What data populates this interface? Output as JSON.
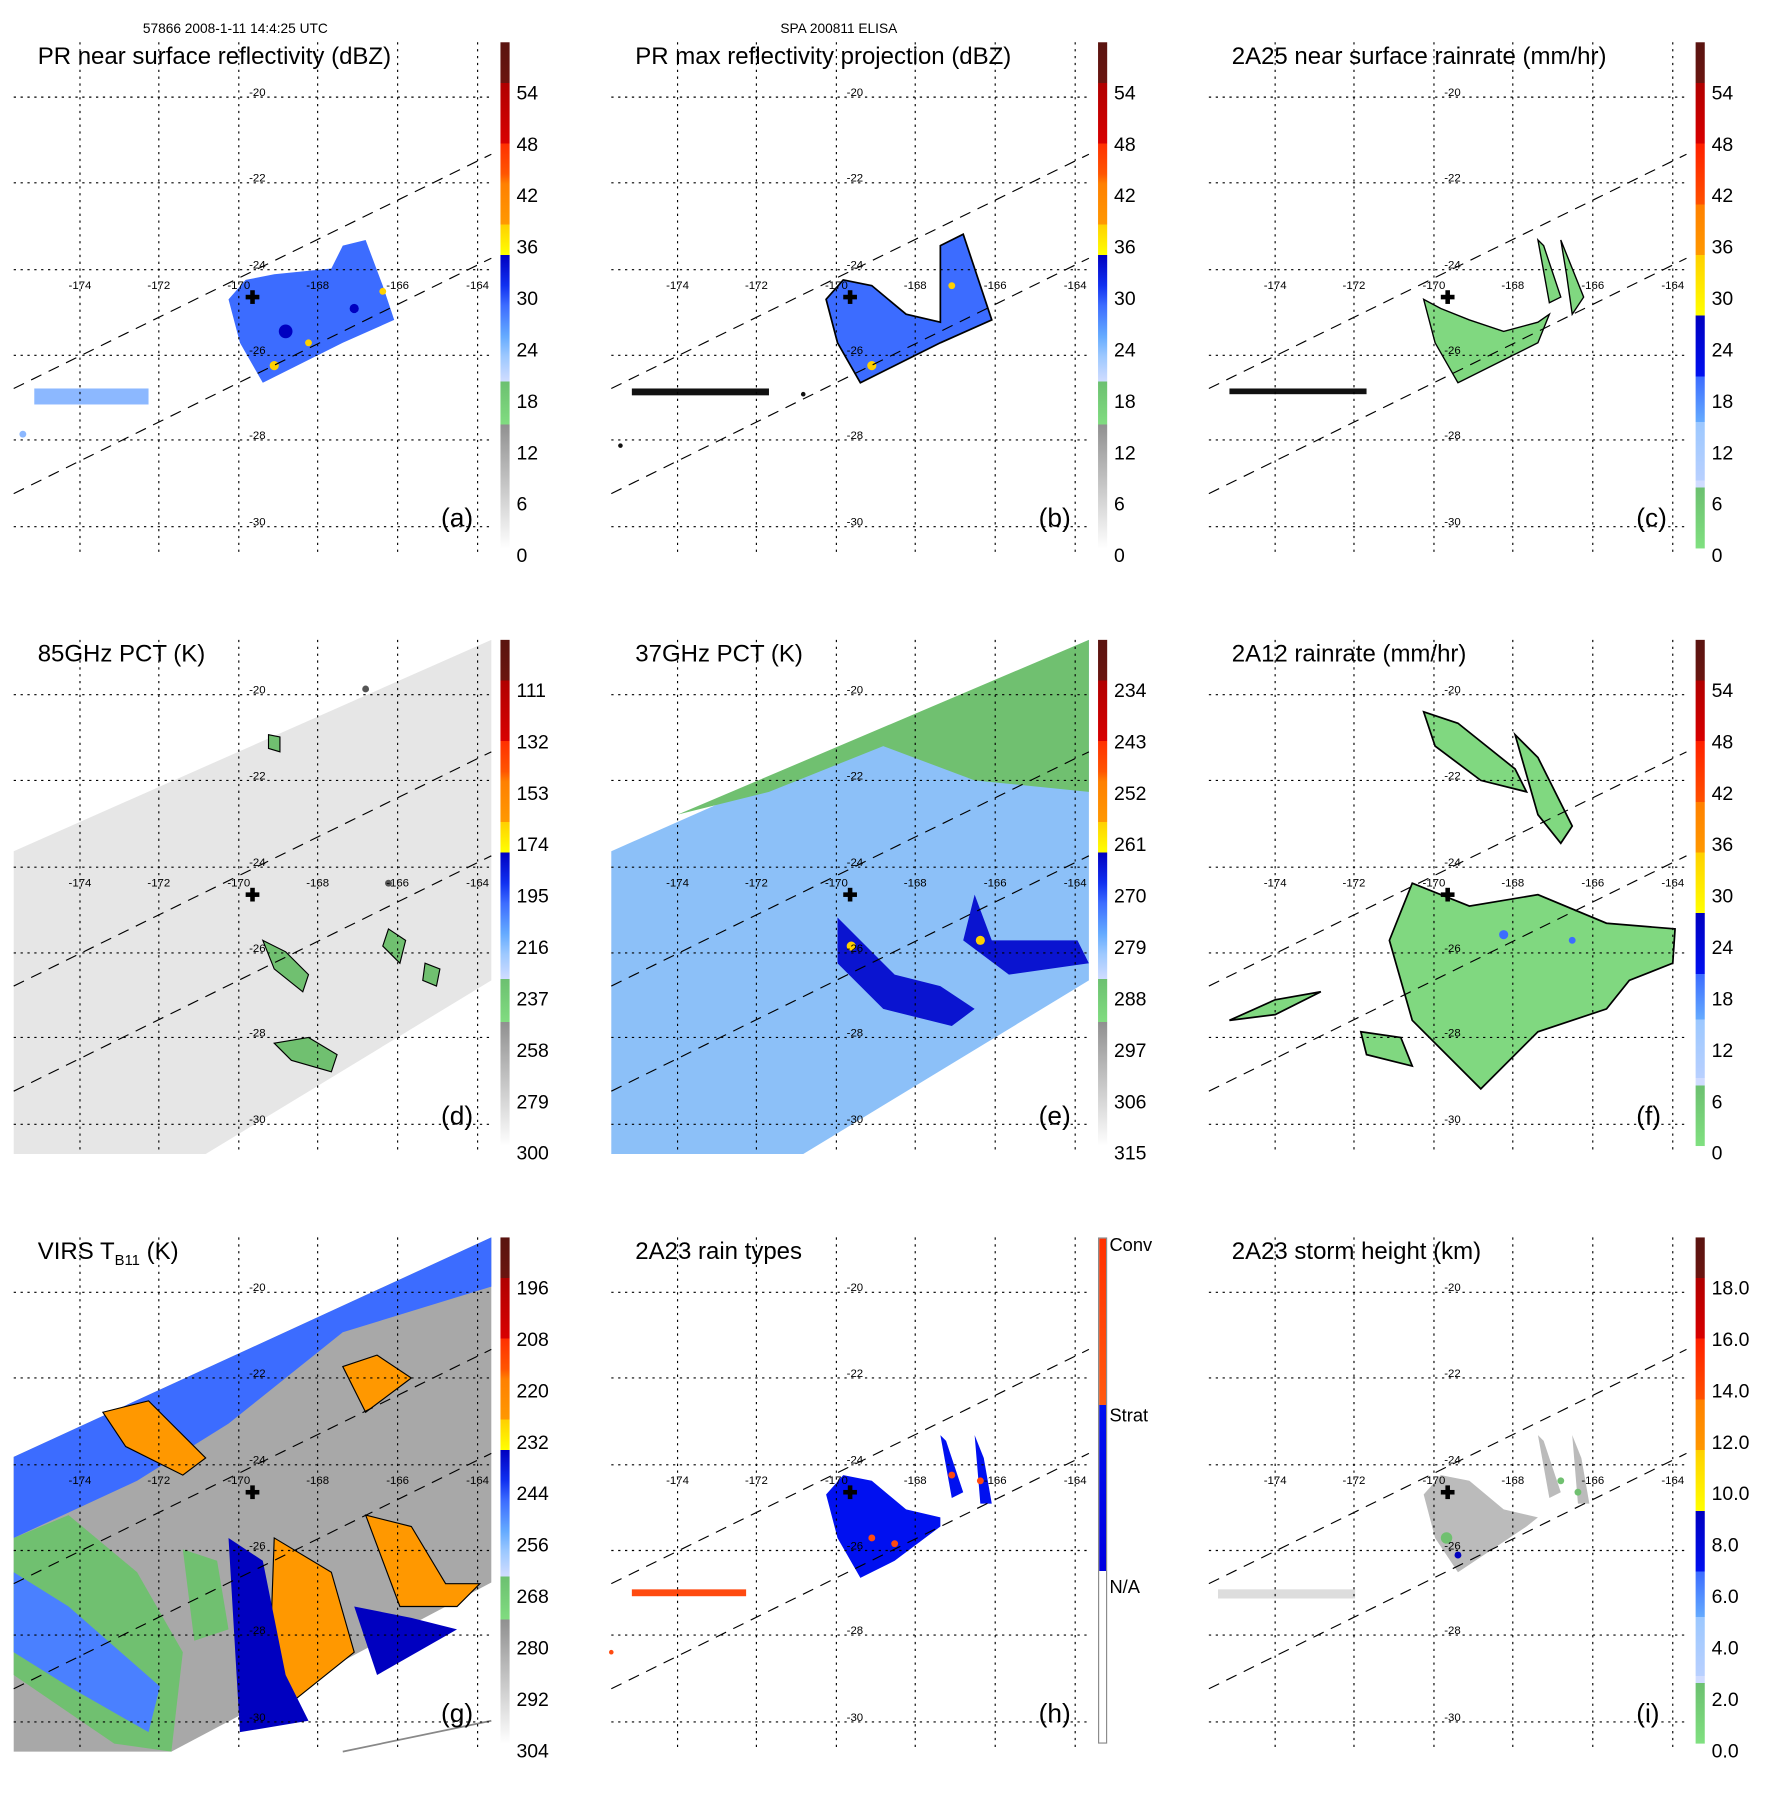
{
  "header": {
    "orbit_time": "57866 2008-1-11 14:4:25 UTC",
    "case_id": "SPA 200811 ELISA"
  },
  "axes": {
    "lat_labels": [
      "-20",
      "-22",
      "-24",
      "-26",
      "-28",
      "-30"
    ],
    "lon_labels": [
      "-174",
      "-172",
      "-170",
      "-168",
      "-166",
      "-164"
    ]
  },
  "panels": [
    {
      "id": "a",
      "title": "PR near surface reflectivity (dBZ)",
      "letter": "(a)",
      "colorbar": [
        "54",
        "48",
        "42",
        "36",
        "30",
        "24",
        "18",
        "12",
        "6",
        "0"
      ]
    },
    {
      "id": "b",
      "title": "PR max reflectivity projection (dBZ)",
      "letter": "(b)",
      "colorbar": [
        "54",
        "48",
        "42",
        "36",
        "30",
        "24",
        "18",
        "12",
        "6",
        "0"
      ]
    },
    {
      "id": "c",
      "title": "2A25 near surface rainrate (mm/hr)",
      "letter": "(c)",
      "colorbar": [
        "54",
        "48",
        "42",
        "36",
        "30",
        "24",
        "18",
        "12",
        "6",
        "0"
      ]
    },
    {
      "id": "d",
      "title": "85GHz PCT (K)",
      "letter": "(d)",
      "colorbar": [
        "111",
        "132",
        "153",
        "174",
        "195",
        "216",
        "237",
        "258",
        "279",
        "300"
      ]
    },
    {
      "id": "e",
      "title": "37GHz PCT (K)",
      "letter": "(e)",
      "colorbar": [
        "234",
        "243",
        "252",
        "261",
        "270",
        "279",
        "288",
        "297",
        "306",
        "315"
      ]
    },
    {
      "id": "f",
      "title": "2A12 rainrate (mm/hr)",
      "letter": "(f)",
      "colorbar": [
        "54",
        "48",
        "42",
        "36",
        "30",
        "24",
        "18",
        "12",
        "6",
        "0"
      ]
    },
    {
      "id": "g",
      "title": "VIRS T",
      "title_sub": "B11",
      "title_suffix": " (K)",
      "letter": "(g)",
      "colorbar": [
        "196",
        "208",
        "220",
        "232",
        "244",
        "256",
        "268",
        "280",
        "292",
        "304"
      ]
    },
    {
      "id": "h",
      "title": "2A23 rain types",
      "letter": "(h)",
      "colorbar": [
        "Conv",
        "Strat",
        "N/A"
      ]
    },
    {
      "id": "i",
      "title": "2A23 storm height (km)",
      "letter": "(i)",
      "colorbar": [
        "18.0",
        "16.0",
        "14.0",
        "12.0",
        "10.0",
        "8.0",
        "6.0",
        "4.0",
        "2.0",
        "0.0"
      ]
    }
  ],
  "colors": {
    "stratiform": "#0010f0",
    "convective": "#ff4a10",
    "light_rain": "#80d880"
  }
}
